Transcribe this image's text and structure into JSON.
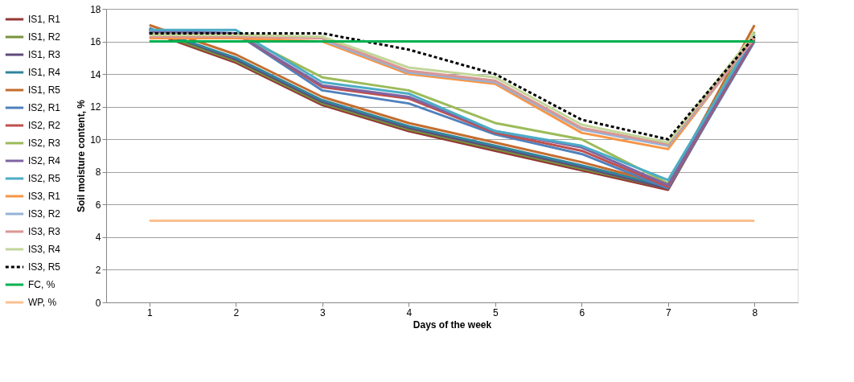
{
  "chart_data": {
    "type": "line",
    "xlabel": "Days of the week",
    "ylabel": "Soil moisture content, %",
    "categories": [
      "1",
      "2",
      "3",
      "4",
      "5",
      "6",
      "7",
      "8"
    ],
    "ylim": [
      0,
      18
    ],
    "yticks": [
      0,
      2,
      4,
      6,
      8,
      10,
      12,
      14,
      16,
      18
    ],
    "grid": "y",
    "legend": "left",
    "marker": "none",
    "series": [
      {
        "name": "IS1, R1",
        "color": "#953735",
        "values": [
          16.6,
          14.7,
          12.1,
          10.5,
          9.3,
          8.1,
          6.9,
          16.2
        ]
      },
      {
        "name": "IS1, R2",
        "color": "#77933c",
        "values": [
          16.7,
          14.8,
          12.2,
          10.6,
          9.4,
          8.2,
          7.0,
          16.4
        ]
      },
      {
        "name": "IS1, R3",
        "color": "#604a7b",
        "values": [
          16.8,
          14.9,
          12.3,
          10.7,
          9.5,
          8.3,
          7.0,
          16.3
        ]
      },
      {
        "name": "IS1, R4",
        "color": "#31859c",
        "values": [
          16.8,
          15.0,
          12.4,
          10.8,
          9.6,
          8.4,
          7.1,
          16.5
        ]
      },
      {
        "name": "IS1, R5",
        "color": "#c46d2e",
        "values": [
          17.0,
          15.2,
          12.6,
          11.0,
          9.8,
          8.6,
          7.2,
          17.0
        ]
      },
      {
        "name": "IS2, R1",
        "color": "#4f81bd",
        "values": [
          16.7,
          16.5,
          13.0,
          12.2,
          10.3,
          9.1,
          7.0,
          16.0
        ]
      },
      {
        "name": "IS2, R2",
        "color": "#c0504d",
        "values": [
          16.5,
          16.5,
          13.2,
          12.5,
          10.4,
          9.3,
          7.1,
          16.1
        ]
      },
      {
        "name": "IS2, R3",
        "color": "#9bbb59",
        "values": [
          16.5,
          16.5,
          13.8,
          13.0,
          11.0,
          10.0,
          7.3,
          16.6
        ]
      },
      {
        "name": "IS2, R4",
        "color": "#8064a2",
        "values": [
          16.6,
          16.5,
          13.3,
          12.6,
          10.5,
          9.5,
          7.2,
          16.2
        ]
      },
      {
        "name": "IS2, R5",
        "color": "#4bacc6",
        "values": [
          16.7,
          16.7,
          13.5,
          12.8,
          10.5,
          9.6,
          7.5,
          16.4
        ]
      },
      {
        "name": "IS3, R1",
        "color": "#f79646",
        "values": [
          16.2,
          16.2,
          16.0,
          14.0,
          13.4,
          10.4,
          9.4,
          16.3
        ]
      },
      {
        "name": "IS3, R2",
        "color": "#95b3d7",
        "values": [
          null,
          null,
          16.1,
          14.1,
          13.5,
          10.6,
          9.6,
          16.2
        ]
      },
      {
        "name": "IS3, R3",
        "color": "#d99694",
        "values": [
          16.3,
          16.3,
          16.2,
          14.2,
          13.6,
          10.7,
          9.7,
          16.2
        ]
      },
      {
        "name": "IS3, R4",
        "color": "#c3d69b",
        "values": [
          16.4,
          16.4,
          16.3,
          14.4,
          13.8,
          10.9,
          9.8,
          16.5
        ]
      },
      {
        "name": "IS3, R5",
        "color": "#000000",
        "line_style": "dashed",
        "values": [
          16.5,
          16.5,
          16.5,
          15.5,
          14.0,
          11.2,
          10.0,
          16.3
        ]
      },
      {
        "name": "FC, %",
        "color": "#00b050",
        "values": [
          16,
          16,
          16,
          16,
          16,
          16,
          16,
          16
        ]
      },
      {
        "name": "WP, %",
        "color": "#fac090",
        "values": [
          5,
          5,
          5,
          5,
          5,
          5,
          5,
          5
        ]
      }
    ]
  }
}
